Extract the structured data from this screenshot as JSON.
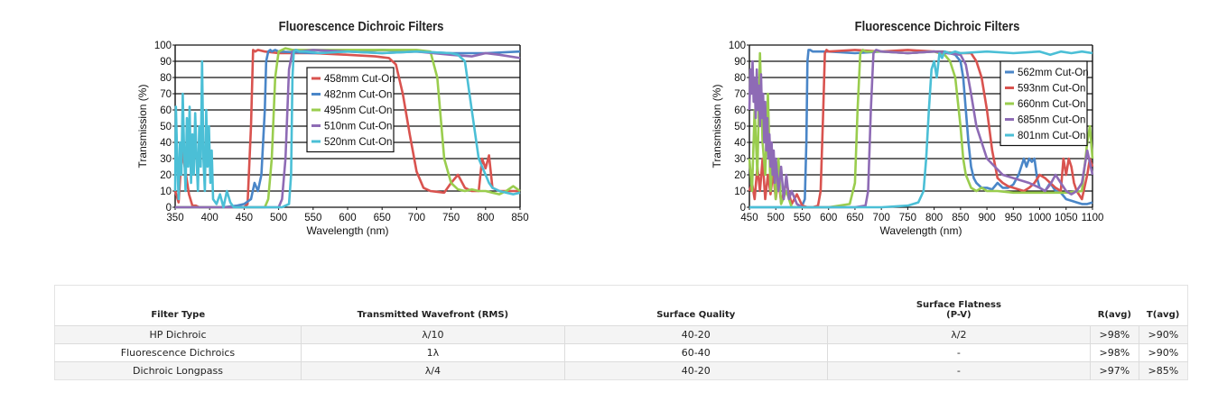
{
  "chart_data": [
    {
      "type": "line",
      "title": "Fluorescence Dichroic Filters",
      "xlabel": "Wavelength (nm)",
      "ylabel": "Transmission (%)",
      "xlim": [
        350,
        850
      ],
      "ylim": [
        0,
        100
      ],
      "xticks": [
        350,
        400,
        450,
        500,
        550,
        600,
        650,
        700,
        750,
        800,
        850
      ],
      "yticks": [
        0,
        10,
        20,
        30,
        40,
        50,
        60,
        70,
        80,
        90,
        100
      ],
      "grid": "horizontal",
      "legend_position": "center",
      "series": [
        {
          "name": "458mm Cut-On",
          "color": "#d9534f",
          "x": [
            350,
            355,
            360,
            365,
            370,
            375,
            380,
            385,
            390,
            395,
            400,
            410,
            420,
            430,
            440,
            450,
            455,
            460,
            463,
            466,
            470,
            480,
            500,
            550,
            600,
            640,
            660,
            670,
            680,
            690,
            700,
            710,
            720,
            740,
            750,
            760,
            770,
            780,
            790,
            795,
            800,
            805,
            810,
            820,
            830,
            840,
            850
          ],
          "y": [
            10,
            3,
            35,
            22,
            8,
            1,
            1,
            0,
            0,
            0,
            0,
            0,
            0,
            0,
            0,
            0,
            2,
            50,
            97,
            96,
            97,
            96,
            95,
            95,
            94,
            93,
            92,
            88,
            70,
            45,
            22,
            12,
            10,
            9,
            15,
            20,
            12,
            10,
            10,
            30,
            24,
            32,
            12,
            10,
            10,
            10,
            10
          ]
        },
        {
          "name": "482nm Cut-On",
          "color": "#4a86c8",
          "x": [
            350,
            360,
            370,
            380,
            400,
            420,
            440,
            450,
            460,
            465,
            470,
            475,
            480,
            482,
            485,
            488,
            490,
            495,
            500,
            550,
            600,
            650,
            700,
            750,
            800,
            850
          ],
          "y": [
            0,
            0,
            0,
            0,
            0,
            0,
            1,
            2,
            5,
            15,
            10,
            20,
            60,
            90,
            96,
            97,
            96,
            97,
            96,
            95,
            96,
            97,
            96,
            95,
            95,
            96
          ]
        },
        {
          "name": "495nm Cut-On",
          "color": "#9acd4e",
          "x": [
            350,
            400,
            450,
            480,
            485,
            490,
            495,
            500,
            505,
            510,
            520,
            600,
            700,
            720,
            730,
            740,
            750,
            760,
            770,
            780,
            790,
            800,
            810,
            820,
            830,
            840,
            850
          ],
          "y": [
            0,
            0,
            0,
            0,
            5,
            30,
            80,
            96,
            97,
            98,
            97,
            97,
            97,
            96,
            80,
            30,
            15,
            11,
            10,
            11,
            10,
            10,
            9,
            8,
            10,
            13,
            10
          ]
        },
        {
          "name": "510nm Cut-On",
          "color": "#8e6bb5",
          "x": [
            350,
            400,
            450,
            500,
            505,
            510,
            515,
            520,
            525,
            530,
            550,
            600,
            650,
            700,
            750,
            780,
            790,
            800,
            820,
            850
          ],
          "y": [
            0,
            0,
            0,
            0,
            5,
            30,
            85,
            96,
            97,
            96,
            97,
            96,
            95,
            96,
            94,
            93,
            94,
            95,
            94,
            92
          ]
        },
        {
          "name": "520nm Cut-On",
          "color": "#4bbfd6",
          "x": [
            350,
            351,
            353,
            355,
            357,
            359,
            361,
            363,
            365,
            367,
            369,
            371,
            373,
            375,
            377,
            379,
            381,
            383,
            385,
            387,
            389,
            391,
            393,
            395,
            397,
            399,
            401,
            403,
            405,
            410,
            415,
            420,
            425,
            430,
            435,
            440,
            445,
            450,
            460,
            470,
            480,
            490,
            500,
            505,
            510,
            515,
            518,
            520,
            522,
            525,
            530,
            540,
            560,
            600,
            650,
            700,
            750,
            760,
            770,
            780,
            790,
            800,
            805,
            810,
            820,
            830,
            840,
            850
          ],
          "y": [
            10,
            62,
            30,
            5,
            40,
            20,
            70,
            35,
            10,
            55,
            25,
            62,
            15,
            45,
            20,
            58,
            30,
            10,
            50,
            25,
            90,
            30,
            10,
            60,
            25,
            50,
            15,
            35,
            5,
            2,
            8,
            0,
            10,
            3,
            0,
            0,
            0,
            0,
            0,
            0,
            0,
            0,
            0,
            0,
            1,
            2,
            20,
            80,
            96,
            97,
            96,
            96,
            95,
            96,
            95,
            96,
            95,
            94,
            90,
            60,
            30,
            20,
            15,
            12,
            10,
            9,
            8,
            9
          ]
        }
      ]
    },
    {
      "type": "line",
      "title": "Fluorescence Dichroic Filters",
      "xlabel": "Wavelength (nm)",
      "ylabel": "Transmission (%)",
      "xlim": [
        450,
        1100
      ],
      "ylim": [
        0,
        100
      ],
      "xticks": [
        450,
        500,
        550,
        600,
        650,
        700,
        750,
        800,
        850,
        900,
        950,
        1000,
        1050,
        1100
      ],
      "yticks": [
        0,
        10,
        20,
        30,
        40,
        50,
        60,
        70,
        80,
        90,
        100
      ],
      "grid": "horizontal",
      "legend_position": "top-right",
      "series": [
        {
          "name": "562mm Cut-On",
          "color": "#4a86c8",
          "x": [
            450,
            500,
            540,
            550,
            555,
            558,
            560,
            562,
            565,
            570,
            600,
            650,
            700,
            750,
            800,
            820,
            840,
            850,
            855,
            860,
            865,
            870,
            875,
            880,
            890,
            900,
            910,
            920,
            930,
            940,
            950,
            960,
            970,
            975,
            980,
            985,
            990,
            995,
            1000,
            1010,
            1020,
            1030,
            1040,
            1050,
            1060,
            1070,
            1080,
            1090,
            1100
          ],
          "y": [
            0,
            0,
            0,
            1,
            5,
            40,
            90,
            97,
            97,
            96,
            96,
            95,
            96,
            95,
            96,
            96,
            94,
            90,
            80,
            60,
            40,
            25,
            18,
            15,
            12,
            12,
            11,
            15,
            12,
            12,
            14,
            20,
            30,
            25,
            30,
            28,
            30,
            18,
            12,
            10,
            15,
            10,
            9,
            5,
            4,
            3,
            2,
            2,
            3
          ]
        },
        {
          "name": "593nm Cut-On",
          "color": "#d9534f",
          "x": [
            450,
            455,
            460,
            465,
            470,
            475,
            480,
            485,
            490,
            495,
            500,
            505,
            510,
            520,
            530,
            540,
            550,
            560,
            570,
            580,
            585,
            590,
            593,
            596,
            600,
            650,
            700,
            750,
            800,
            850,
            870,
            880,
            890,
            900,
            910,
            920,
            930,
            940,
            950,
            960,
            970,
            980,
            990,
            1000,
            1010,
            1020,
            1030,
            1040,
            1045,
            1050,
            1055,
            1060,
            1065,
            1070,
            1080,
            1090,
            1095,
            1100
          ],
          "y": [
            10,
            15,
            5,
            25,
            10,
            30,
            5,
            20,
            8,
            22,
            5,
            18,
            3,
            15,
            2,
            8,
            1,
            0,
            0,
            1,
            10,
            60,
            95,
            97,
            96,
            97,
            96,
            97,
            96,
            95,
            95,
            90,
            80,
            60,
            35,
            18,
            15,
            13,
            12,
            11,
            10,
            12,
            15,
            20,
            18,
            15,
            12,
            10,
            30,
            20,
            30,
            25,
            15,
            10,
            5,
            20,
            30,
            25
          ]
        },
        {
          "name": "660nm Cut-On",
          "color": "#9acd4e",
          "x": [
            450,
            455,
            460,
            465,
            470,
            475,
            480,
            485,
            490,
            495,
            500,
            505,
            510,
            520,
            530,
            550,
            600,
            640,
            650,
            655,
            660,
            665,
            670,
            700,
            750,
            800,
            820,
            830,
            840,
            850,
            855,
            860,
            870,
            880,
            890,
            900,
            920,
            950,
            1000,
            1050,
            1080,
            1090,
            1095,
            1100
          ],
          "y": [
            30,
            10,
            60,
            20,
            95,
            40,
            20,
            70,
            10,
            35,
            5,
            30,
            2,
            10,
            0,
            0,
            0,
            2,
            15,
            60,
            95,
            97,
            96,
            96,
            95,
            96,
            94,
            90,
            80,
            50,
            30,
            20,
            12,
            10,
            12,
            10,
            10,
            9,
            9,
            9,
            10,
            40,
            50,
            30
          ]
        },
        {
          "name": "685nm Cut-On",
          "color": "#8e6bb5",
          "x": [
            450,
            452,
            454,
            456,
            458,
            460,
            462,
            464,
            466,
            468,
            470,
            472,
            474,
            476,
            478,
            480,
            482,
            484,
            486,
            488,
            490,
            492,
            494,
            496,
            498,
            500,
            505,
            510,
            515,
            520,
            525,
            530,
            540,
            550,
            600,
            650,
            670,
            675,
            680,
            685,
            690,
            700,
            750,
            800,
            850,
            860,
            870,
            880,
            900,
            930,
            950,
            980,
            1000,
            1010,
            1020,
            1030,
            1040,
            1050,
            1060,
            1070,
            1080,
            1090,
            1100
          ],
          "y": [
            60,
            85,
            70,
            90,
            65,
            80,
            55,
            85,
            60,
            75,
            50,
            82,
            55,
            70,
            40,
            65,
            35,
            55,
            30,
            45,
            25,
            40,
            20,
            35,
            15,
            30,
            10,
            25,
            5,
            20,
            5,
            10,
            2,
            0,
            0,
            0,
            1,
            10,
            60,
            95,
            97,
            96,
            95,
            96,
            94,
            88,
            70,
            50,
            30,
            20,
            18,
            15,
            12,
            10,
            14,
            20,
            15,
            10,
            8,
            10,
            15,
            35,
            20
          ]
        },
        {
          "name": "801nm Cut-On",
          "color": "#4bbfd6",
          "x": [
            450,
            500,
            600,
            700,
            750,
            770,
            780,
            785,
            790,
            795,
            800,
            805,
            810,
            815,
            820,
            830,
            840,
            850,
            900,
            950,
            1000,
            1020,
            1040,
            1060,
            1080,
            1100
          ],
          "y": [
            0,
            0,
            0,
            0,
            1,
            3,
            10,
            30,
            60,
            85,
            90,
            80,
            95,
            92,
            96,
            95,
            96,
            95,
            96,
            95,
            96,
            94,
            96,
            95,
            96,
            95
          ]
        }
      ]
    }
  ],
  "table": {
    "headers": [
      "Filter Type",
      "Transmitted Wavefront (RMS)",
      "Surface Quality",
      "Surface Flatness\n(P-V)",
      "R(avg)",
      "T(avg)"
    ],
    "rows": [
      [
        "HP Dichroic",
        "λ/10",
        "40-20",
        "λ/2",
        ">98%",
        ">90%"
      ],
      [
        "Fluorescence Dichroics",
        "1λ",
        "60-40",
        "-",
        ">98%",
        ">90%"
      ],
      [
        "Dichroic Longpass",
        "λ/4",
        "40-20",
        "-",
        ">97%",
        ">85%"
      ]
    ]
  }
}
